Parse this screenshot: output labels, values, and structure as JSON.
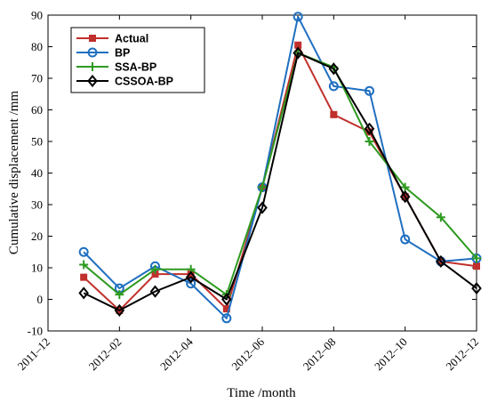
{
  "chart_data": {
    "type": "line",
    "xlabel": "Time /month",
    "ylabel": "Cumulative displacement /mm",
    "ylim": [
      -10,
      90
    ],
    "y_ticks": [
      -10,
      0,
      10,
      20,
      30,
      40,
      50,
      60,
      70,
      80,
      90
    ],
    "x_tick_labels": [
      "2011–12",
      "2012–02",
      "2012–04",
      "2012–06",
      "2012–08",
      "2012–10",
      "2012–12"
    ],
    "x_tick_positions": [
      0,
      2,
      4,
      6,
      8,
      10,
      12
    ],
    "xlim": [
      0,
      12
    ],
    "x": [
      1,
      2,
      3,
      4,
      5,
      6,
      7,
      8,
      9,
      10,
      11,
      12
    ],
    "grid": false,
    "legend_position": "top-left",
    "series": [
      {
        "name": "Actual",
        "color": "#c0302c",
        "marker": "filled-square",
        "values": [
          7,
          -3.5,
          8,
          8,
          -3,
          35.5,
          80.5,
          58.5,
          53,
          32.5,
          12,
          10.5
        ]
      },
      {
        "name": "BP",
        "color": "#1f6fc0",
        "marker": "circle",
        "values": [
          15,
          3.5,
          10.5,
          5,
          -6,
          35.5,
          89.5,
          67.5,
          66,
          19,
          12,
          13
        ]
      },
      {
        "name": "SSA-BP",
        "color": "#2e9a20",
        "marker": "plus",
        "values": [
          11,
          1.5,
          9.5,
          9.5,
          1.5,
          35.5,
          78,
          73.5,
          50,
          35.5,
          26,
          13
        ]
      },
      {
        "name": "CSSOA-BP",
        "color": "#000000",
        "marker": "diamond",
        "values": [
          2,
          -3.5,
          2.5,
          7,
          0,
          29,
          78,
          73,
          54,
          32.5,
          12,
          3.5
        ]
      }
    ]
  }
}
